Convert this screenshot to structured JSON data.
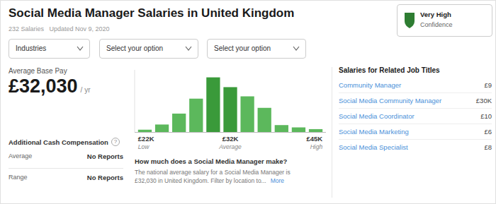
{
  "chart_data": {
    "type": "bar",
    "title": "Social Media Manager Salaries in United Kingdom",
    "subtitle": "232 Salaries   Updated Nov 9, 2020",
    "categories": [
      "£22K",
      null,
      null,
      null,
      null,
      "£32K",
      null,
      null,
      null,
      null,
      "£45K"
    ],
    "values": [
      0.04,
      0.13,
      0.32,
      0.58,
      0.95,
      0.78,
      0.62,
      0.42,
      0.12,
      0.08,
      0.05
    ],
    "colors": [
      "#5cb85c",
      "#5cb85c",
      "#5cb85c",
      "#5cb85c",
      "#3a9a3a",
      "#3a9a3a",
      "#5cb85c",
      "#5cb85c",
      "#5cb85c",
      "#5cb85c",
      "#5cb85c"
    ],
    "annotations": [
      "Low",
      "Average",
      "High"
    ],
    "ylim": [
      0,
      1.08
    ],
    "grid": false,
    "tick_labels": "x"
  },
  "page": {
    "badge_title": "Very High",
    "badge_sub": "Confidence",
    "badge_color": "#2e7d32",
    "dropdowns": [
      "Industries",
      "Select your option",
      "Select your option"
    ],
    "avg_label": "Average Base Pay",
    "avg_salary": "£32,030",
    "avg_suffix": "/ yr",
    "add_cash_title": "Additional Cash Compensation",
    "help_icon": "?",
    "rows": [
      {
        "label": "Average",
        "value": "No Reports"
      },
      {
        "label": "Range",
        "value": "No Reports"
      }
    ],
    "desc_title": "How much does a Social Media Manager make?",
    "desc_lines": [
      "The national average salary for a Social Media Manager is",
      "£32,030 in United Kingdom. Filter by location to..."
    ],
    "desc_more": "More",
    "related_title": "Salaries for Related Job Titles",
    "related_jobs": [
      {
        "name": "Community Manager",
        "value": "£9"
      },
      {
        "name": "Social Media Community Manager",
        "value": "£30K"
      },
      {
        "name": "Social Media Coordinator",
        "value": "£10"
      },
      {
        "name": "Social Media Marketing",
        "value": "£6"
      },
      {
        "name": "Social Media Specialist",
        "value": "£8"
      }
    ],
    "link_color": "#4a90d9"
  }
}
